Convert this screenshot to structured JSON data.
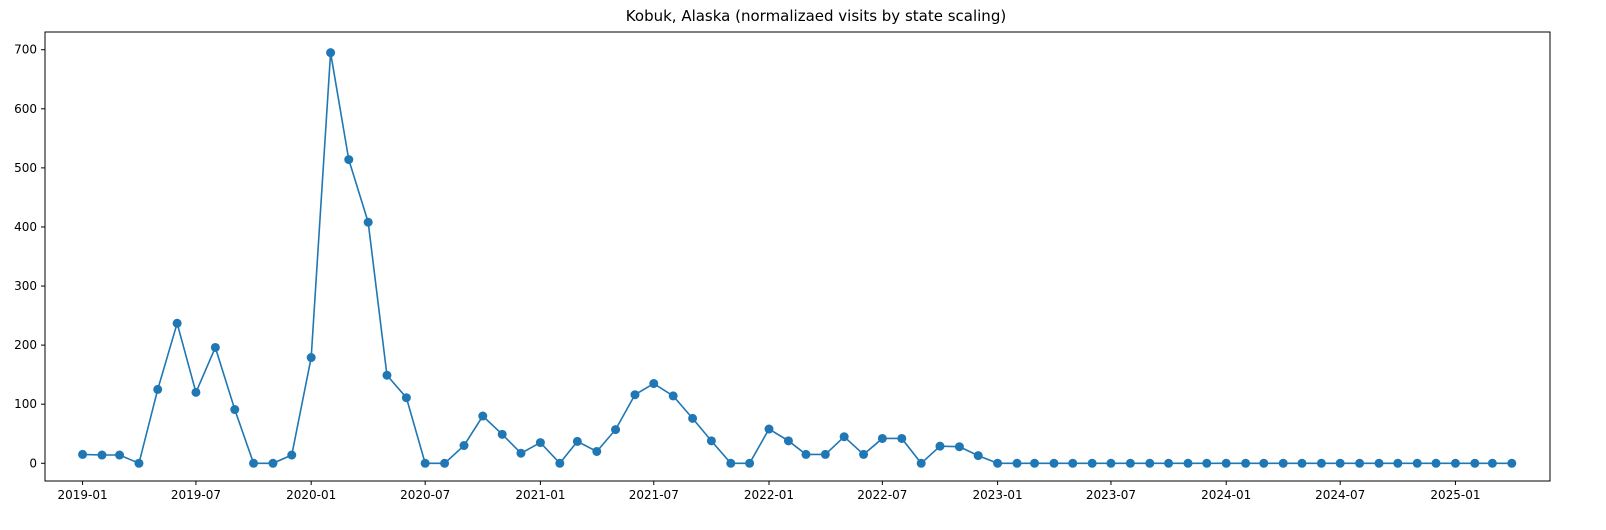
{
  "chart_data": {
    "type": "line",
    "title": "Kobuk, Alaska (normalizaed visits by state scaling)",
    "xlabel": "",
    "ylabel": "",
    "ylim": [
      -30,
      730
    ],
    "xlim": [
      "2018-11-02",
      "2025-06-01"
    ],
    "yticks": [
      0,
      100,
      200,
      300,
      400,
      500,
      600,
      700
    ],
    "xticks": [
      "2019-01",
      "2019-07",
      "2020-01",
      "2020-07",
      "2021-01",
      "2021-07",
      "2022-01",
      "2022-07",
      "2023-01",
      "2023-07",
      "2024-01",
      "2024-07",
      "2025-01"
    ],
    "grid": false,
    "legend": "none",
    "color": "#1f77b4",
    "marker": "circle",
    "x": [
      "2019-01-01",
      "2019-02-01",
      "2019-03-01",
      "2019-04-01",
      "2019-05-01",
      "2019-06-01",
      "2019-07-01",
      "2019-08-01",
      "2019-09-01",
      "2019-10-01",
      "2019-11-01",
      "2019-12-01",
      "2020-01-01",
      "2020-02-01",
      "2020-03-01",
      "2020-04-01",
      "2020-05-01",
      "2020-06-01",
      "2020-07-01",
      "2020-08-01",
      "2020-09-01",
      "2020-10-01",
      "2020-11-01",
      "2020-12-01",
      "2021-01-01",
      "2021-02-01",
      "2021-03-01",
      "2021-04-01",
      "2021-05-01",
      "2021-06-01",
      "2021-07-01",
      "2021-08-01",
      "2021-09-01",
      "2021-10-01",
      "2021-11-01",
      "2021-12-01",
      "2022-01-01",
      "2022-02-01",
      "2022-03-01",
      "2022-04-01",
      "2022-05-01",
      "2022-06-01",
      "2022-07-01",
      "2022-08-01",
      "2022-09-01",
      "2022-10-01",
      "2022-11-01",
      "2022-12-01",
      "2023-01-01",
      "2023-02-01",
      "2023-03-01",
      "2023-04-01",
      "2023-05-01",
      "2023-06-01",
      "2023-07-01",
      "2023-08-01",
      "2023-09-01",
      "2023-10-01",
      "2023-11-01",
      "2023-12-01",
      "2024-01-01",
      "2024-02-01",
      "2024-03-01",
      "2024-04-01",
      "2024-05-01",
      "2024-06-01",
      "2024-07-01",
      "2024-08-01",
      "2024-09-01",
      "2024-10-01",
      "2024-11-01",
      "2024-12-01",
      "2025-01-01",
      "2025-02-01",
      "2025-03-01",
      "2025-04-01"
    ],
    "series": [
      {
        "values": [
          15,
          14,
          14,
          0,
          125,
          237,
          120,
          196,
          91,
          0,
          0,
          14,
          179,
          695,
          514,
          408,
          149,
          111,
          0,
          0,
          30,
          80,
          49,
          17,
          35,
          0,
          37,
          20,
          57,
          116,
          135,
          114,
          76,
          38,
          0,
          0,
          58,
          38,
          15,
          15,
          45,
          15,
          42,
          42,
          0,
          29,
          28,
          13,
          0,
          0,
          0,
          0,
          0,
          0,
          0,
          0,
          0,
          0,
          0,
          0,
          0,
          0,
          0,
          0,
          0,
          0,
          0,
          0,
          0,
          0,
          0,
          0,
          0,
          0,
          0,
          0
        ]
      }
    ]
  }
}
